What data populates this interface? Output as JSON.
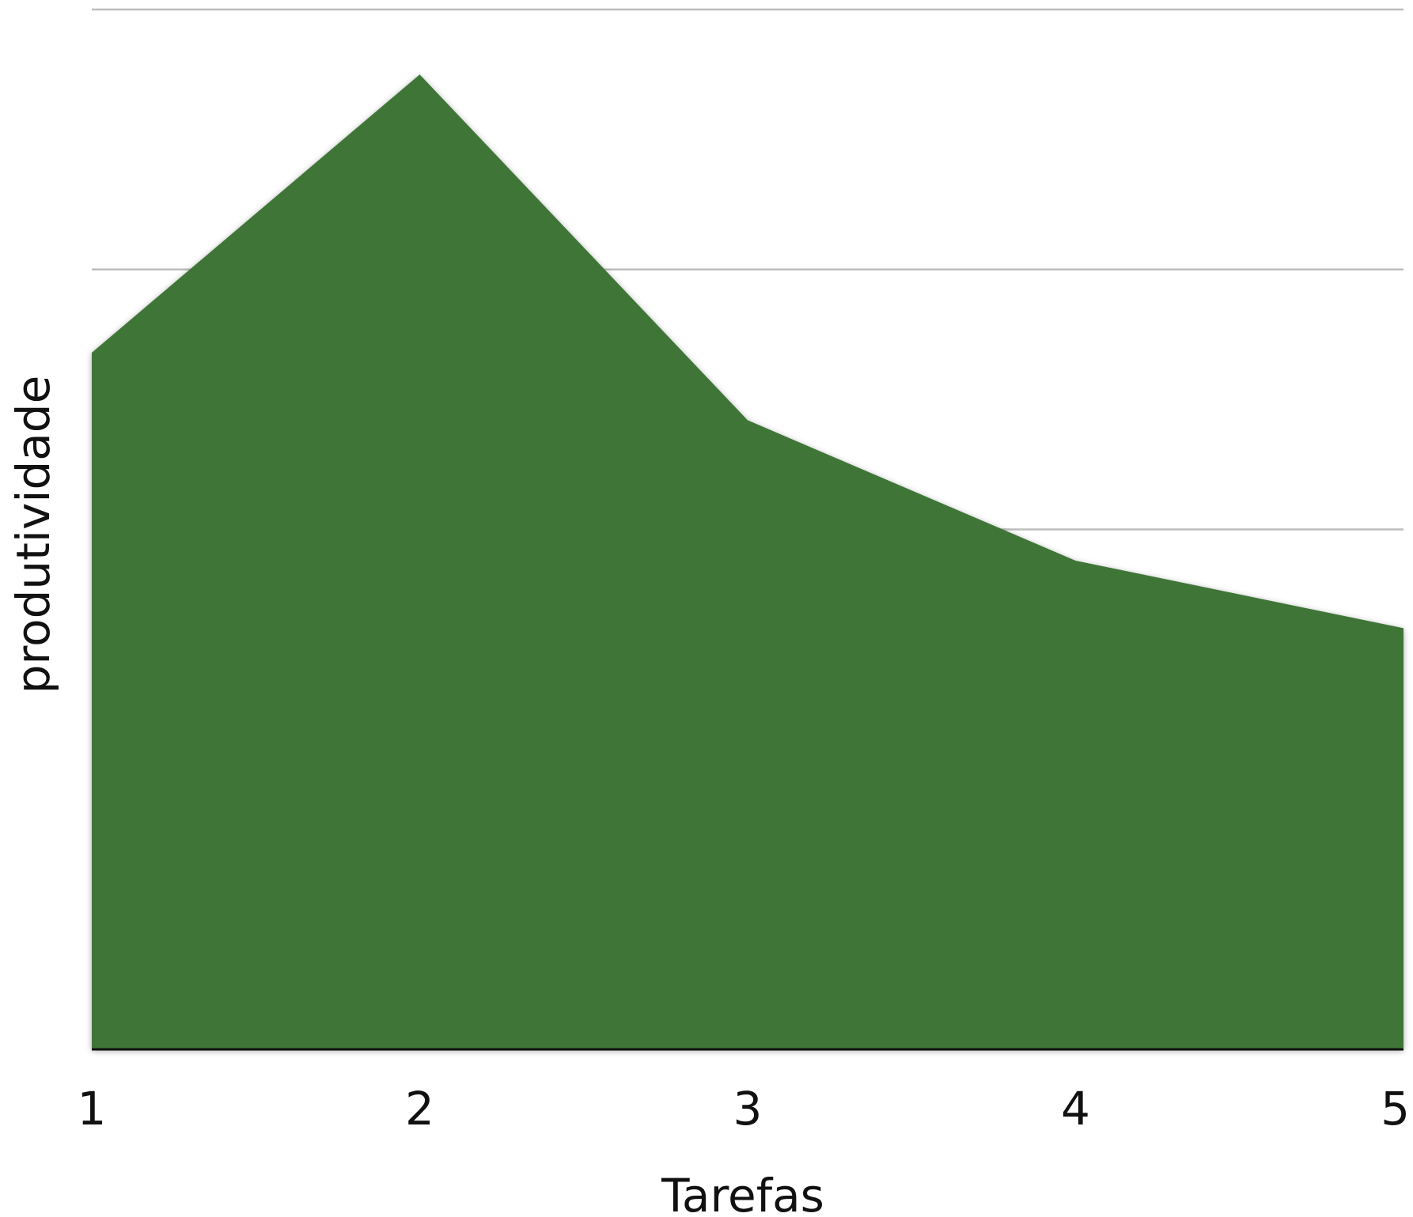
{
  "chart_data": {
    "type": "area",
    "categories": [
      "1",
      "2",
      "3",
      "4",
      "5"
    ],
    "series": [
      {
        "values": [
          2.68,
          3.75,
          2.42,
          1.88,
          1.62
        ]
      }
    ],
    "xlabel": "Tarefas",
    "ylabel": "produtividade",
    "ylim": [
      0,
      4
    ],
    "gridlines": [
      2,
      3,
      4
    ],
    "grid": true,
    "ytick_labels_shown": false,
    "legend": "none",
    "colors": {
      "fill": "#3f7539",
      "grid": "#bdbdbd",
      "axis": "#111111",
      "text": "#111111"
    }
  }
}
